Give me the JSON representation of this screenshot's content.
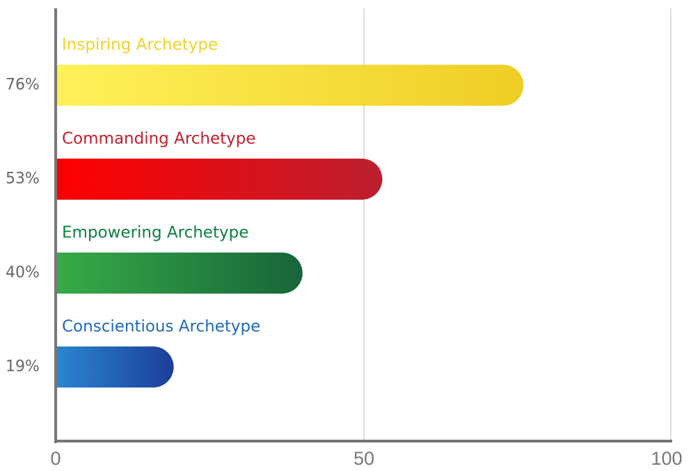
{
  "chart_data": {
    "type": "bar",
    "orientation": "horizontal",
    "categories": [
      "Inspiring Archetype",
      "Commanding Archetype",
      "Empowering Archetype",
      "Conscientious Archetype"
    ],
    "values": [
      76,
      53,
      40,
      19
    ],
    "value_labels": [
      "76%",
      "53%",
      "40%",
      "19%"
    ],
    "xlim": [
      0,
      100
    ],
    "xticks": [
      0,
      50,
      100
    ],
    "grid": "vertical",
    "colors": [
      {
        "label": "#F2D12A",
        "start": "#FFF15A",
        "end": "#EFCE25"
      },
      {
        "label": "#C0202E",
        "start": "#FF0000",
        "end": "#BC1F2F"
      },
      {
        "label": "#0C8043",
        "start": "#37AB47",
        "end": "#17653A"
      },
      {
        "label": "#1F6AB5",
        "start": "#2A86D1",
        "end": "#1C3D99"
      }
    ]
  }
}
